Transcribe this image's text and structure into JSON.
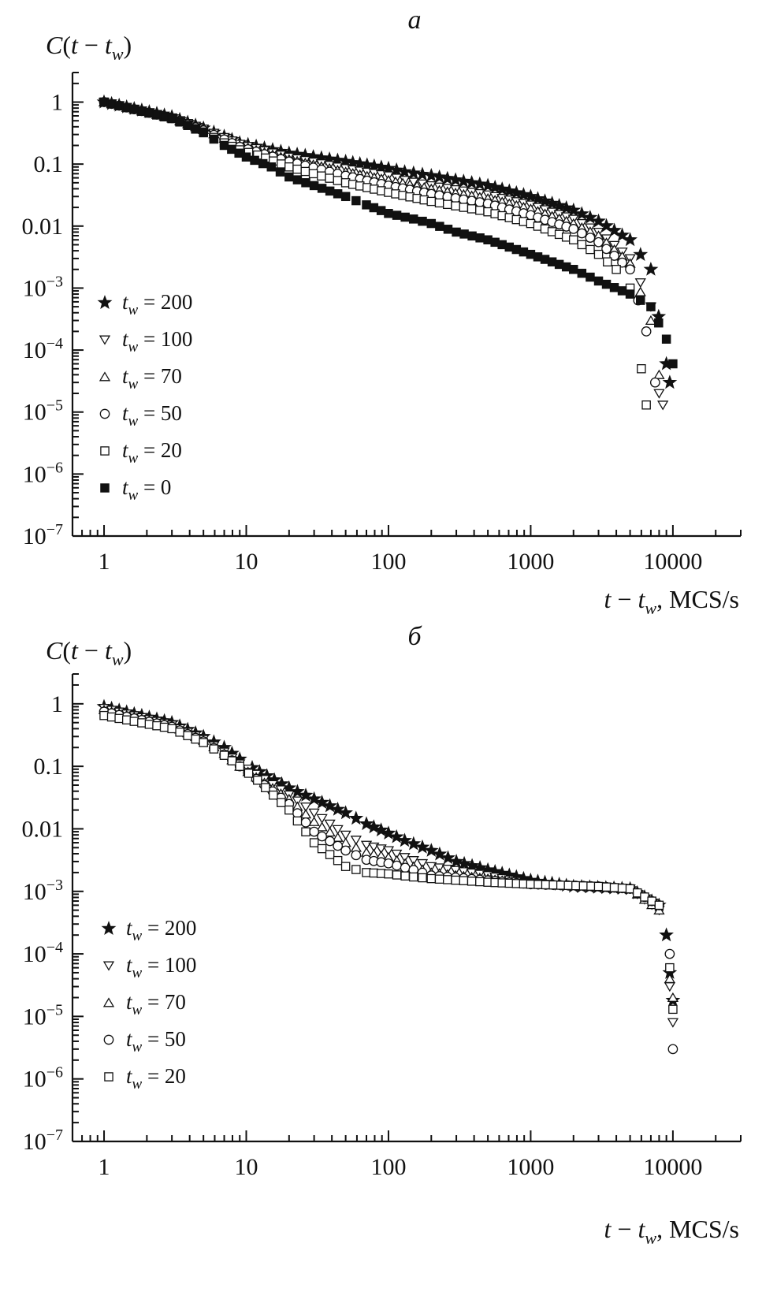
{
  "chart_data": [
    {
      "type": "scatter",
      "panel_label": "а",
      "ylabel": "C(t − t_w)",
      "xlabel": "t − t_w, MCS/s",
      "x_scale": "log",
      "y_scale": "log",
      "xlim": [
        0.6,
        30000
      ],
      "ylim": [
        1e-07,
        3
      ],
      "x_ticks": [
        {
          "value": 1,
          "label": "1"
        },
        {
          "value": 10,
          "label": "10"
        },
        {
          "value": 100,
          "label": "100"
        },
        {
          "value": 1000,
          "label": "1000"
        },
        {
          "value": 10000,
          "label": "10000"
        }
      ],
      "y_ticks": [
        {
          "value": 1,
          "label": "1",
          "exp": ""
        },
        {
          "value": 0.1,
          "label": "0.1",
          "exp": ""
        },
        {
          "value": 0.01,
          "label": "0.01",
          "exp": ""
        },
        {
          "value": 0.001,
          "label": "10",
          "exp": "−3"
        },
        {
          "value": 0.0001,
          "label": "10",
          "exp": "−4"
        },
        {
          "value": 1e-05,
          "label": "10",
          "exp": "−5"
        },
        {
          "value": 1e-06,
          "label": "10",
          "exp": "−6"
        },
        {
          "value": 1e-07,
          "label": "10",
          "exp": "−7"
        }
      ],
      "legend_position": "left-middle",
      "series": [
        {
          "name_base": "t",
          "name_sub": "w",
          "name_rest": " = 200",
          "marker": "star",
          "points": [
            [
              1,
              1.0
            ],
            [
              3,
              0.58
            ],
            [
              5,
              0.38
            ],
            [
              7,
              0.28
            ],
            [
              9,
              0.22
            ],
            [
              20,
              0.15
            ],
            [
              50,
              0.11
            ],
            [
              100,
              0.085
            ],
            [
              130,
              0.075
            ],
            [
              200,
              0.065
            ],
            [
              500,
              0.045
            ],
            [
              1000,
              0.03
            ],
            [
              2000,
              0.018
            ],
            [
              3000,
              0.012
            ],
            [
              5000,
              0.006
            ],
            [
              7000,
              0.002
            ],
            [
              9000,
              6e-05
            ],
            [
              9500,
              3e-05
            ]
          ]
        },
        {
          "name_base": "t",
          "name_sub": "w",
          "name_rest": " = 100",
          "marker": "tri_down",
          "points": [
            [
              1,
              1.0
            ],
            [
              3,
              0.56
            ],
            [
              5,
              0.37
            ],
            [
              7,
              0.27
            ],
            [
              9,
              0.21
            ],
            [
              20,
              0.13
            ],
            [
              50,
              0.085
            ],
            [
              100,
              0.065
            ],
            [
              130,
              0.055
            ],
            [
              200,
              0.045
            ],
            [
              500,
              0.032
            ],
            [
              1000,
              0.022
            ],
            [
              2000,
              0.013
            ],
            [
              3000,
              0.008
            ],
            [
              5000,
              0.003
            ],
            [
              7000,
              0.0005
            ],
            [
              8000,
              2e-05
            ],
            [
              8500,
              1.3e-05
            ]
          ]
        },
        {
          "name_base": "t",
          "name_sub": "w",
          "name_rest": " = 70",
          "marker": "tri_up",
          "points": [
            [
              1,
              1.0
            ],
            [
              3,
              0.55
            ],
            [
              5,
              0.36
            ],
            [
              7,
              0.26
            ],
            [
              9,
              0.2
            ],
            [
              20,
              0.12
            ],
            [
              50,
              0.075
            ],
            [
              100,
              0.055
            ],
            [
              200,
              0.04
            ],
            [
              500,
              0.028
            ],
            [
              1000,
              0.019
            ],
            [
              2000,
              0.011
            ],
            [
              3000,
              0.007
            ],
            [
              5000,
              0.0025
            ],
            [
              7000,
              0.0003
            ],
            [
              8000,
              4e-05
            ]
          ]
        },
        {
          "name_base": "t",
          "name_sub": "w",
          "name_rest": " = 50",
          "marker": "circle",
          "points": [
            [
              1,
              1.0
            ],
            [
              3,
              0.55
            ],
            [
              5,
              0.35
            ],
            [
              7,
              0.25
            ],
            [
              9,
              0.19
            ],
            [
              20,
              0.11
            ],
            [
              50,
              0.065
            ],
            [
              100,
              0.045
            ],
            [
              200,
              0.033
            ],
            [
              500,
              0.023
            ],
            [
              1000,
              0.015
            ],
            [
              2000,
              0.009
            ],
            [
              3000,
              0.0055
            ],
            [
              5000,
              0.002
            ],
            [
              6500,
              0.0002
            ],
            [
              7500,
              3e-05
            ]
          ]
        },
        {
          "name_base": "t",
          "name_sub": "w",
          "name_rest": " = 20",
          "marker": "square",
          "points": [
            [
              1,
              1.0
            ],
            [
              3,
              0.54
            ],
            [
              5,
              0.33
            ],
            [
              7,
              0.22
            ],
            [
              9,
              0.17
            ],
            [
              12,
              0.14
            ],
            [
              20,
              0.09
            ],
            [
              50,
              0.05
            ],
            [
              100,
              0.035
            ],
            [
              200,
              0.025
            ],
            [
              500,
              0.017
            ],
            [
              1000,
              0.011
            ],
            [
              2000,
              0.006
            ],
            [
              3000,
              0.0035
            ],
            [
              4000,
              0.002
            ],
            [
              5000,
              0.001
            ],
            [
              6000,
              5e-05
            ],
            [
              6500,
              1.3e-05
            ]
          ]
        },
        {
          "name_base": "t",
          "name_sub": "w",
          "name_rest": " = 0",
          "marker": "filled_square",
          "points": [
            [
              1,
              1.0
            ],
            [
              3,
              0.55
            ],
            [
              5,
              0.32
            ],
            [
              7,
              0.2
            ],
            [
              10,
              0.13
            ],
            [
              15,
              0.09
            ],
            [
              20,
              0.062
            ],
            [
              30,
              0.045
            ],
            [
              50,
              0.03
            ],
            [
              70,
              0.022
            ],
            [
              100,
              0.016
            ],
            [
              150,
              0.013
            ],
            [
              200,
              0.011
            ],
            [
              300,
              0.008
            ],
            [
              500,
              0.006
            ],
            [
              1000,
              0.0035
            ],
            [
              2000,
              0.002
            ],
            [
              3000,
              0.0013
            ],
            [
              5000,
              0.0008
            ],
            [
              7000,
              0.0005
            ],
            [
              9000,
              0.00015
            ],
            [
              10000,
              6e-05
            ]
          ]
        }
      ]
    },
    {
      "type": "scatter",
      "panel_label": "б",
      "ylabel": "C(t − t_w)",
      "xlabel": "t − t_w, MCS/s",
      "x_scale": "log",
      "y_scale": "log",
      "xlim": [
        0.6,
        30000
      ],
      "ylim": [
        1e-07,
        3
      ],
      "x_ticks": [
        {
          "value": 1,
          "label": "1"
        },
        {
          "value": 10,
          "label": "10"
        },
        {
          "value": 100,
          "label": "100"
        },
        {
          "value": 1000,
          "label": "1000"
        },
        {
          "value": 10000,
          "label": "10000"
        }
      ],
      "y_ticks": [
        {
          "value": 1,
          "label": "1",
          "exp": ""
        },
        {
          "value": 0.1,
          "label": "0.1",
          "exp": ""
        },
        {
          "value": 0.01,
          "label": "0.01",
          "exp": ""
        },
        {
          "value": 0.001,
          "label": "10",
          "exp": "−3"
        },
        {
          "value": 0.0001,
          "label": "10",
          "exp": "−4"
        },
        {
          "value": 1e-05,
          "label": "10",
          "exp": "−5"
        },
        {
          "value": 1e-06,
          "label": "10",
          "exp": "−6"
        },
        {
          "value": 1e-07,
          "label": "10",
          "exp": "−7"
        }
      ],
      "legend_position": "left-middle",
      "series": [
        {
          "name_base": "t",
          "name_sub": "w",
          "name_rest": " = 200",
          "marker": "star",
          "points": [
            [
              1,
              0.9
            ],
            [
              3,
              0.5
            ],
            [
              5,
              0.3
            ],
            [
              7,
              0.2
            ],
            [
              9,
              0.13
            ],
            [
              11,
              0.095
            ],
            [
              20,
              0.045
            ],
            [
              30,
              0.03
            ],
            [
              50,
              0.018
            ],
            [
              70,
              0.012
            ],
            [
              100,
              0.0085
            ],
            [
              130,
              0.0065
            ],
            [
              200,
              0.0045
            ],
            [
              300,
              0.003
            ],
            [
              500,
              0.0022
            ],
            [
              1000,
              0.0015
            ],
            [
              2000,
              0.0012
            ],
            [
              5000,
              0.0011
            ],
            [
              8000,
              0.0006
            ],
            [
              9000,
              0.0002
            ],
            [
              9500,
              5e-05
            ],
            [
              10000,
              1.8e-05
            ]
          ]
        },
        {
          "name_base": "t",
          "name_sub": "w",
          "name_rest": " = 100",
          "marker": "tri_down",
          "points": [
            [
              1,
              0.85
            ],
            [
              3,
              0.46
            ],
            [
              5,
              0.27
            ],
            [
              7,
              0.17
            ],
            [
              9,
              0.11
            ],
            [
              20,
              0.035
            ],
            [
              30,
              0.018
            ],
            [
              50,
              0.008
            ],
            [
              70,
              0.0055
            ],
            [
              100,
              0.0045
            ],
            [
              130,
              0.0035
            ],
            [
              200,
              0.0025
            ],
            [
              500,
              0.0018
            ],
            [
              1000,
              0.0013
            ],
            [
              3000,
              0.0012
            ],
            [
              5000,
              0.0011
            ],
            [
              8000,
              0.0005
            ],
            [
              9500,
              3e-05
            ],
            [
              10000,
              8e-06
            ]
          ]
        },
        {
          "name_base": "t",
          "name_sub": "w",
          "name_rest": " = 70",
          "marker": "tri_up",
          "points": [
            [
              1,
              0.8
            ],
            [
              3,
              0.45
            ],
            [
              5,
              0.26
            ],
            [
              7,
              0.16
            ],
            [
              9,
              0.1
            ],
            [
              20,
              0.03
            ],
            [
              30,
              0.013
            ],
            [
              50,
              0.006
            ],
            [
              70,
              0.0042
            ],
            [
              100,
              0.0035
            ],
            [
              150,
              0.0025
            ],
            [
              200,
              0.002
            ],
            [
              500,
              0.0016
            ],
            [
              1000,
              0.0013
            ],
            [
              3000,
              0.0012
            ],
            [
              5000,
              0.0011
            ],
            [
              8000,
              0.0005
            ],
            [
              9500,
              4e-05
            ],
            [
              10000,
              2e-05
            ]
          ]
        },
        {
          "name_base": "t",
          "name_sub": "w",
          "name_rest": " = 50",
          "marker": "circle",
          "points": [
            [
              1,
              0.75
            ],
            [
              3,
              0.43
            ],
            [
              5,
              0.25
            ],
            [
              7,
              0.155
            ],
            [
              9,
              0.1
            ],
            [
              20,
              0.025
            ],
            [
              30,
              0.009
            ],
            [
              50,
              0.0045
            ],
            [
              70,
              0.0032
            ],
            [
              100,
              0.0028
            ],
            [
              150,
              0.0022
            ],
            [
              200,
              0.0018
            ],
            [
              500,
              0.0015
            ],
            [
              1000,
              0.0013
            ],
            [
              3000,
              0.0012
            ],
            [
              5000,
              0.0011
            ],
            [
              8000,
              0.0006
            ],
            [
              9500,
              0.0001
            ],
            [
              10000,
              3e-06
            ]
          ]
        },
        {
          "name_base": "t",
          "name_sub": "w",
          "name_rest": " = 20",
          "marker": "square",
          "points": [
            [
              1,
              0.65
            ],
            [
              3,
              0.4
            ],
            [
              5,
              0.24
            ],
            [
              7,
              0.15
            ],
            [
              9,
              0.1
            ],
            [
              12,
              0.06
            ],
            [
              20,
              0.02
            ],
            [
              30,
              0.006
            ],
            [
              50,
              0.0025
            ],
            [
              70,
              0.002
            ],
            [
              100,
              0.0019
            ],
            [
              150,
              0.0017
            ],
            [
              200,
              0.0016
            ],
            [
              500,
              0.0014
            ],
            [
              1000,
              0.0013
            ],
            [
              3000,
              0.0012
            ],
            [
              5000,
              0.0011
            ],
            [
              8000,
              0.0006
            ],
            [
              9500,
              6e-05
            ],
            [
              10000,
              1.3e-05
            ]
          ]
        }
      ]
    }
  ]
}
